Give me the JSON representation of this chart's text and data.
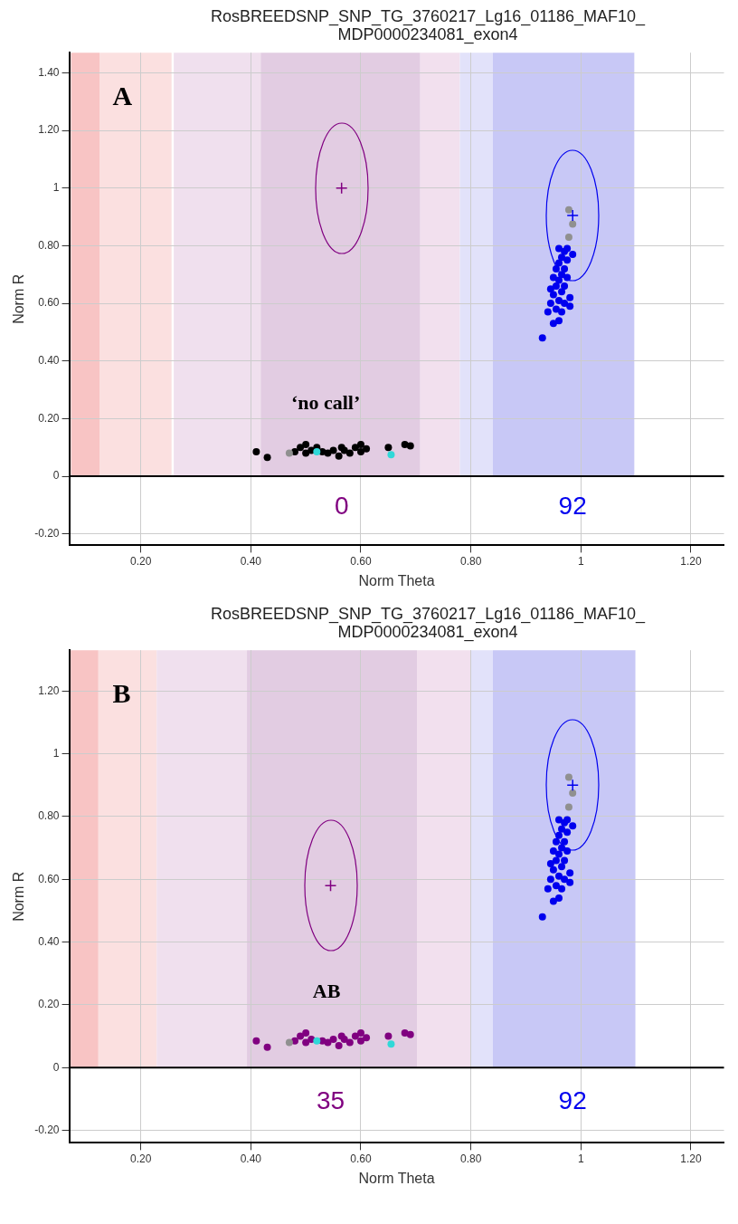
{
  "chart_data": [
    {
      "type": "scatter",
      "title": "RosBREEDSNP_SNP_TG_3760217_Lg16_01186_MAF10_MDP0000234081_exon4",
      "xlabel": "Norm Theta",
      "ylabel": "Norm R",
      "xlim": [
        0.07,
        1.26
      ],
      "ylim": [
        -0.24,
        1.47
      ],
      "xticks": [
        {
          "value": 0.2,
          "label": "0.20"
        },
        {
          "value": 0.4,
          "label": "0.40"
        },
        {
          "value": 0.6,
          "label": "0.60"
        },
        {
          "value": 0.8,
          "label": "0.80"
        },
        {
          "value": 1,
          "label": "1"
        },
        {
          "value": 1.2,
          "label": "1.20"
        }
      ],
      "yticks": [
        {
          "value": -0.2,
          "label": "-0.20"
        },
        {
          "value": 0,
          "label": "0"
        },
        {
          "value": 0.2,
          "label": "0.20"
        },
        {
          "value": 0.4,
          "label": "0.40"
        },
        {
          "value": 0.6,
          "label": "0.60"
        },
        {
          "value": 0.8,
          "label": "0.80"
        },
        {
          "value": 1,
          "label": "1"
        },
        {
          "value": 1.2,
          "label": "1.20"
        },
        {
          "value": 1.4,
          "label": "1.40"
        }
      ],
      "grid": true,
      "bands": [
        {
          "axis": "x",
          "from": 0.073,
          "to": 0.125,
          "color": "#f8c4c4"
        },
        {
          "axis": "x",
          "from": 0.125,
          "to": 0.256,
          "color": "#fbe0e0"
        },
        {
          "axis": "x",
          "from": 0.26,
          "to": 0.418,
          "color": "#f0e0ee"
        },
        {
          "axis": "x",
          "from": 0.418,
          "to": 0.708,
          "color": "#e2cce2"
        },
        {
          "axis": "x",
          "from": 0.708,
          "to": 0.78,
          "color": "#f2e0ee"
        },
        {
          "axis": "x",
          "from": 0.78,
          "to": 0.84,
          "color": "#e2e2fa"
        },
        {
          "axis": "x",
          "from": 0.84,
          "to": 1.097,
          "color": "#c8c8f6"
        }
      ],
      "ref_lines": [
        {
          "axis": "y",
          "value": 0,
          "color": "#000000"
        }
      ],
      "annotations": [
        "A",
        "‘no call’",
        "0",
        "92"
      ],
      "series": [
        {
          "type": "scatter",
          "marker": "circle",
          "color": "#000000",
          "x": [
            0.41,
            0.43,
            0.48,
            0.49,
            0.5,
            0.5,
            0.51,
            0.52,
            0.53,
            0.54,
            0.55,
            0.56,
            0.565,
            0.57,
            0.58,
            0.59,
            0.6,
            0.6,
            0.61,
            0.65,
            0.68,
            0.69
          ],
          "values": [
            0.085,
            0.065,
            0.085,
            0.1,
            0.11,
            0.08,
            0.09,
            0.1,
            0.085,
            0.08,
            0.09,
            0.07,
            0.1,
            0.09,
            0.08,
            0.1,
            0.11,
            0.085,
            0.095,
            0.1,
            0.11,
            0.105
          ]
        },
        {
          "type": "scatter",
          "marker": "circle",
          "color": "#30d8d8",
          "x": [
            0.52,
            0.655
          ],
          "values": [
            0.085,
            0.075
          ]
        },
        {
          "type": "scatter",
          "marker": "circle",
          "color": "#909090",
          "x": [
            0.47,
            0.978,
            0.985,
            0.978
          ],
          "values": [
            0.08,
            0.925,
            0.875,
            0.83
          ]
        },
        {
          "type": "scatter",
          "marker": "circle",
          "color": "#0000ee",
          "x": [
            0.93,
            0.95,
            0.96,
            0.94,
            0.955,
            0.965,
            0.98,
            0.945,
            0.96,
            0.97,
            0.95,
            0.965,
            0.955,
            0.97,
            0.96,
            0.95,
            0.965,
            0.975,
            0.955,
            0.97,
            0.96,
            0.975,
            0.965,
            0.97,
            0.96,
            0.975,
            0.985,
            0.945,
            0.98
          ],
          "values": [
            0.48,
            0.53,
            0.54,
            0.57,
            0.58,
            0.57,
            0.59,
            0.6,
            0.61,
            0.6,
            0.63,
            0.64,
            0.66,
            0.66,
            0.68,
            0.69,
            0.7,
            0.69,
            0.72,
            0.72,
            0.74,
            0.75,
            0.76,
            0.78,
            0.79,
            0.79,
            0.77,
            0.65,
            0.62
          ]
        },
        {
          "type": "scatter",
          "marker": "cross",
          "color": "#800080",
          "x": [
            0.565
          ],
          "values": [
            1.0
          ]
        },
        {
          "type": "scatter",
          "marker": "cross",
          "color": "#0000ee",
          "x": [
            0.985
          ],
          "values": [
            0.905
          ]
        }
      ]
    },
    {
      "type": "scatter",
      "title": "RosBREEDSNP_SNP_TG_3760217_Lg16_01186_MAF10_MDP0000234081_exon4",
      "xlabel": "Norm Theta",
      "ylabel": "Norm R",
      "xlim": [
        0.07,
        1.26
      ],
      "ylim": [
        -0.24,
        1.33
      ],
      "xticks": [
        {
          "value": 0.2,
          "label": "0.20"
        },
        {
          "value": 0.4,
          "label": "0.40"
        },
        {
          "value": 0.6,
          "label": "0.60"
        },
        {
          "value": 0.8,
          "label": "0.80"
        },
        {
          "value": 1,
          "label": "1"
        },
        {
          "value": 1.2,
          "label": "1.20"
        }
      ],
      "yticks": [
        {
          "value": -0.2,
          "label": "-0.20"
        },
        {
          "value": 0,
          "label": "0"
        },
        {
          "value": 0.2,
          "label": "0.20"
        },
        {
          "value": 0.4,
          "label": "0.40"
        },
        {
          "value": 0.6,
          "label": "0.60"
        },
        {
          "value": 0.8,
          "label": "0.80"
        },
        {
          "value": 1,
          "label": "1"
        },
        {
          "value": 1.2,
          "label": "1.20"
        }
      ],
      "grid": true,
      "bands": [
        {
          "axis": "x",
          "from": 0.072,
          "to": 0.123,
          "color": "#f8c4c4"
        },
        {
          "axis": "x",
          "from": 0.123,
          "to": 0.229,
          "color": "#fbe0e0"
        },
        {
          "axis": "x",
          "from": 0.229,
          "to": 0.393,
          "color": "#f0e0ee"
        },
        {
          "axis": "x",
          "from": 0.393,
          "to": 0.702,
          "color": "#e2cce2"
        },
        {
          "axis": "x",
          "from": 0.702,
          "to": 0.8,
          "color": "#f2e0ee"
        },
        {
          "axis": "x",
          "from": 0.8,
          "to": 0.84,
          "color": "#e2e2fa"
        },
        {
          "axis": "x",
          "from": 0.84,
          "to": 1.099,
          "color": "#c8c8f6"
        }
      ],
      "ref_lines": [
        {
          "axis": "y",
          "value": 0,
          "color": "#000000"
        }
      ],
      "annotations": [
        "B",
        "AB",
        "35",
        "92"
      ],
      "series": [
        {
          "type": "scatter",
          "marker": "circle",
          "color": "#800080",
          "x": [
            0.41,
            0.43,
            0.48,
            0.49,
            0.5,
            0.5,
            0.51,
            0.53,
            0.54,
            0.55,
            0.56,
            0.565,
            0.57,
            0.58,
            0.59,
            0.6,
            0.6,
            0.61,
            0.65,
            0.68,
            0.69
          ],
          "values": [
            0.085,
            0.065,
            0.085,
            0.1,
            0.11,
            0.08,
            0.09,
            0.085,
            0.08,
            0.09,
            0.07,
            0.1,
            0.09,
            0.08,
            0.1,
            0.11,
            0.085,
            0.095,
            0.1,
            0.11,
            0.105
          ]
        },
        {
          "type": "scatter",
          "marker": "circle",
          "color": "#30d8d8",
          "x": [
            0.52,
            0.655
          ],
          "values": [
            0.085,
            0.075
          ]
        },
        {
          "type": "scatter",
          "marker": "circle",
          "color": "#909090",
          "x": [
            0.47,
            0.978,
            0.985,
            0.978
          ],
          "values": [
            0.08,
            0.925,
            0.875,
            0.83
          ]
        },
        {
          "type": "scatter",
          "marker": "circle",
          "color": "#0000ee",
          "x": [
            0.93,
            0.95,
            0.96,
            0.94,
            0.955,
            0.965,
            0.98,
            0.945,
            0.96,
            0.97,
            0.95,
            0.965,
            0.955,
            0.97,
            0.96,
            0.95,
            0.965,
            0.975,
            0.955,
            0.97,
            0.96,
            0.975,
            0.965,
            0.97,
            0.96,
            0.975,
            0.985,
            0.945,
            0.98
          ],
          "values": [
            0.48,
            0.53,
            0.54,
            0.57,
            0.58,
            0.57,
            0.59,
            0.6,
            0.61,
            0.6,
            0.63,
            0.64,
            0.66,
            0.66,
            0.68,
            0.69,
            0.7,
            0.69,
            0.72,
            0.72,
            0.74,
            0.75,
            0.76,
            0.78,
            0.79,
            0.79,
            0.77,
            0.65,
            0.62
          ]
        },
        {
          "type": "scatter",
          "marker": "cross",
          "color": "#800080",
          "x": [
            0.545
          ],
          "values": [
            0.58
          ]
        },
        {
          "type": "scatter",
          "marker": "cross",
          "color": "#0000ee",
          "x": [
            0.985
          ],
          "values": [
            0.9
          ]
        }
      ]
    }
  ]
}
